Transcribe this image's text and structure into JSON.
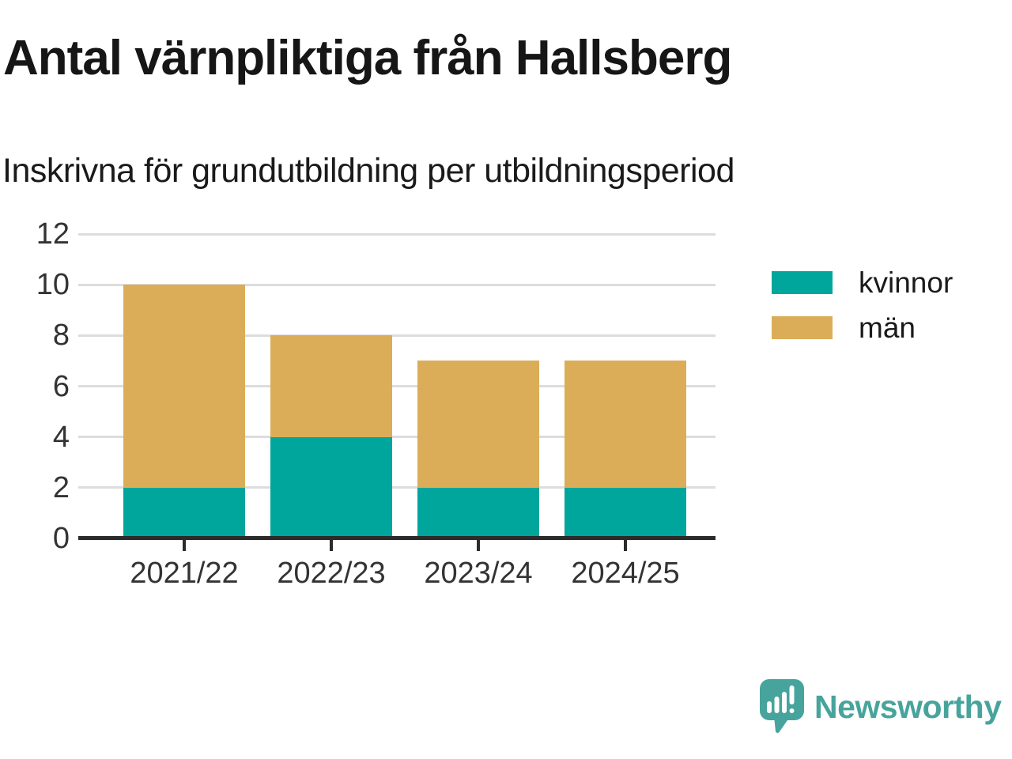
{
  "header": {
    "title": "Antal värnpliktiga från Hallsberg",
    "subtitle": "Inskrivna för grundutbildning per utbildningsperiod"
  },
  "chart_data": {
    "type": "bar",
    "stacked": true,
    "title": "Antal värnpliktiga från Hallsberg",
    "subtitle": "Inskrivna för grundutbildning per utbildningsperiod",
    "categories": [
      "2021/22",
      "2022/23",
      "2023/24",
      "2024/25"
    ],
    "series": [
      {
        "name": "kvinnor",
        "color": "#00a59b",
        "values": [
          2,
          4,
          2,
          2
        ]
      },
      {
        "name": "män",
        "color": "#dbad58",
        "values": [
          8,
          4,
          5,
          5
        ]
      }
    ],
    "totals": [
      10,
      8,
      7,
      7
    ],
    "xlabel": "",
    "ylabel": "",
    "ylim": [
      0,
      12
    ],
    "yticks": [
      0,
      2,
      4,
      6,
      8,
      10,
      12
    ],
    "grid": true,
    "legend_position": "right"
  },
  "branding": {
    "logo_text": "Newsworthy",
    "logo_color": "#47a49c"
  },
  "style_colors": {
    "axis": "#2b2b2b",
    "gridline": "#dddddd",
    "tick_label": "#333333",
    "title_text": "#161616"
  }
}
